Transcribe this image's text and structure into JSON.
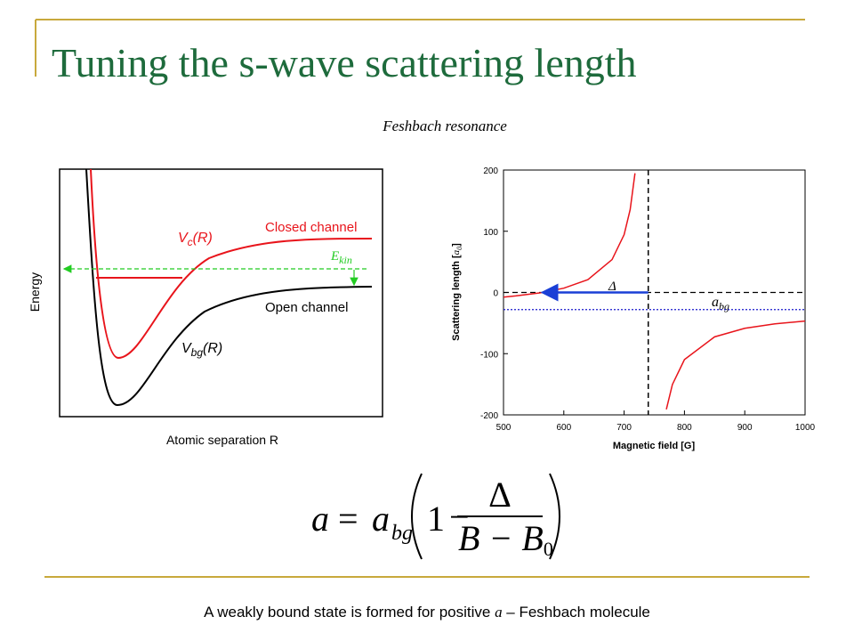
{
  "title": "Tuning the s-wave scattering length",
  "subtitle": "Feshbach resonance",
  "potential_diagram": {
    "ylabel": "Energy",
    "xlabel": "Atomic separation R",
    "closed_label": {
      "v": "V",
      "sub": "c",
      "arg": "(R)"
    },
    "closed_channel": "Closed channel",
    "open_channel": "Open channel",
    "open_label": {
      "v": "V",
      "sub": "bg",
      "arg": "(R)"
    },
    "ekin": {
      "e": "E",
      "sub": "kin"
    }
  },
  "chart_data": {
    "type": "line",
    "xlabel": "Magnetic field [G]",
    "ylabel": {
      "before": "Scattering length [",
      "a": "a",
      "sub": "0",
      "after": "]"
    },
    "x": [
      500,
      520,
      560,
      600,
      640,
      680,
      700,
      710,
      718,
      null,
      770,
      780,
      800,
      850,
      900,
      950,
      1000
    ],
    "series": [
      {
        "color": "#e8141b",
        "values": [
          -7.6,
          -5.7,
          -0.8,
          7,
          21,
          53.7,
          94.5,
          135.3,
          194.7,
          null,
          -191,
          -150.5,
          -109.7,
          -72.5,
          -58.6,
          -51.3,
          -46.8
        ]
      }
    ],
    "reference_lines": [
      {
        "x": 740,
        "color": "#000000"
      },
      {
        "y": 0,
        "color": "#000000"
      },
      {
        "y": -28,
        "color": "#1a1acc"
      }
    ],
    "delta_arrow": {
      "from": 565,
      "to": 740,
      "color": "#1a3fd6"
    },
    "annotations": {
      "delta": "Δ",
      "abg": {
        "a": "a",
        "sub": "bg"
      }
    },
    "xlim": [
      500,
      1000
    ],
    "xticks": [
      500,
      600,
      700,
      800,
      900,
      1000
    ],
    "ylim": [
      -200,
      200
    ],
    "yticks": [
      -200,
      -100,
      0,
      100,
      200
    ]
  },
  "formula": {
    "a": "a",
    "eq": "=",
    "abg": "a",
    "abg_sub": "bg",
    "one": "1",
    "minus": "−",
    "num": "Δ",
    "den_b": "B − B",
    "den_sub": "0"
  },
  "footer": {
    "before": "A weakly bound state is formed for positive ",
    "italic": "a",
    "after": " – Feshbach molecule"
  }
}
